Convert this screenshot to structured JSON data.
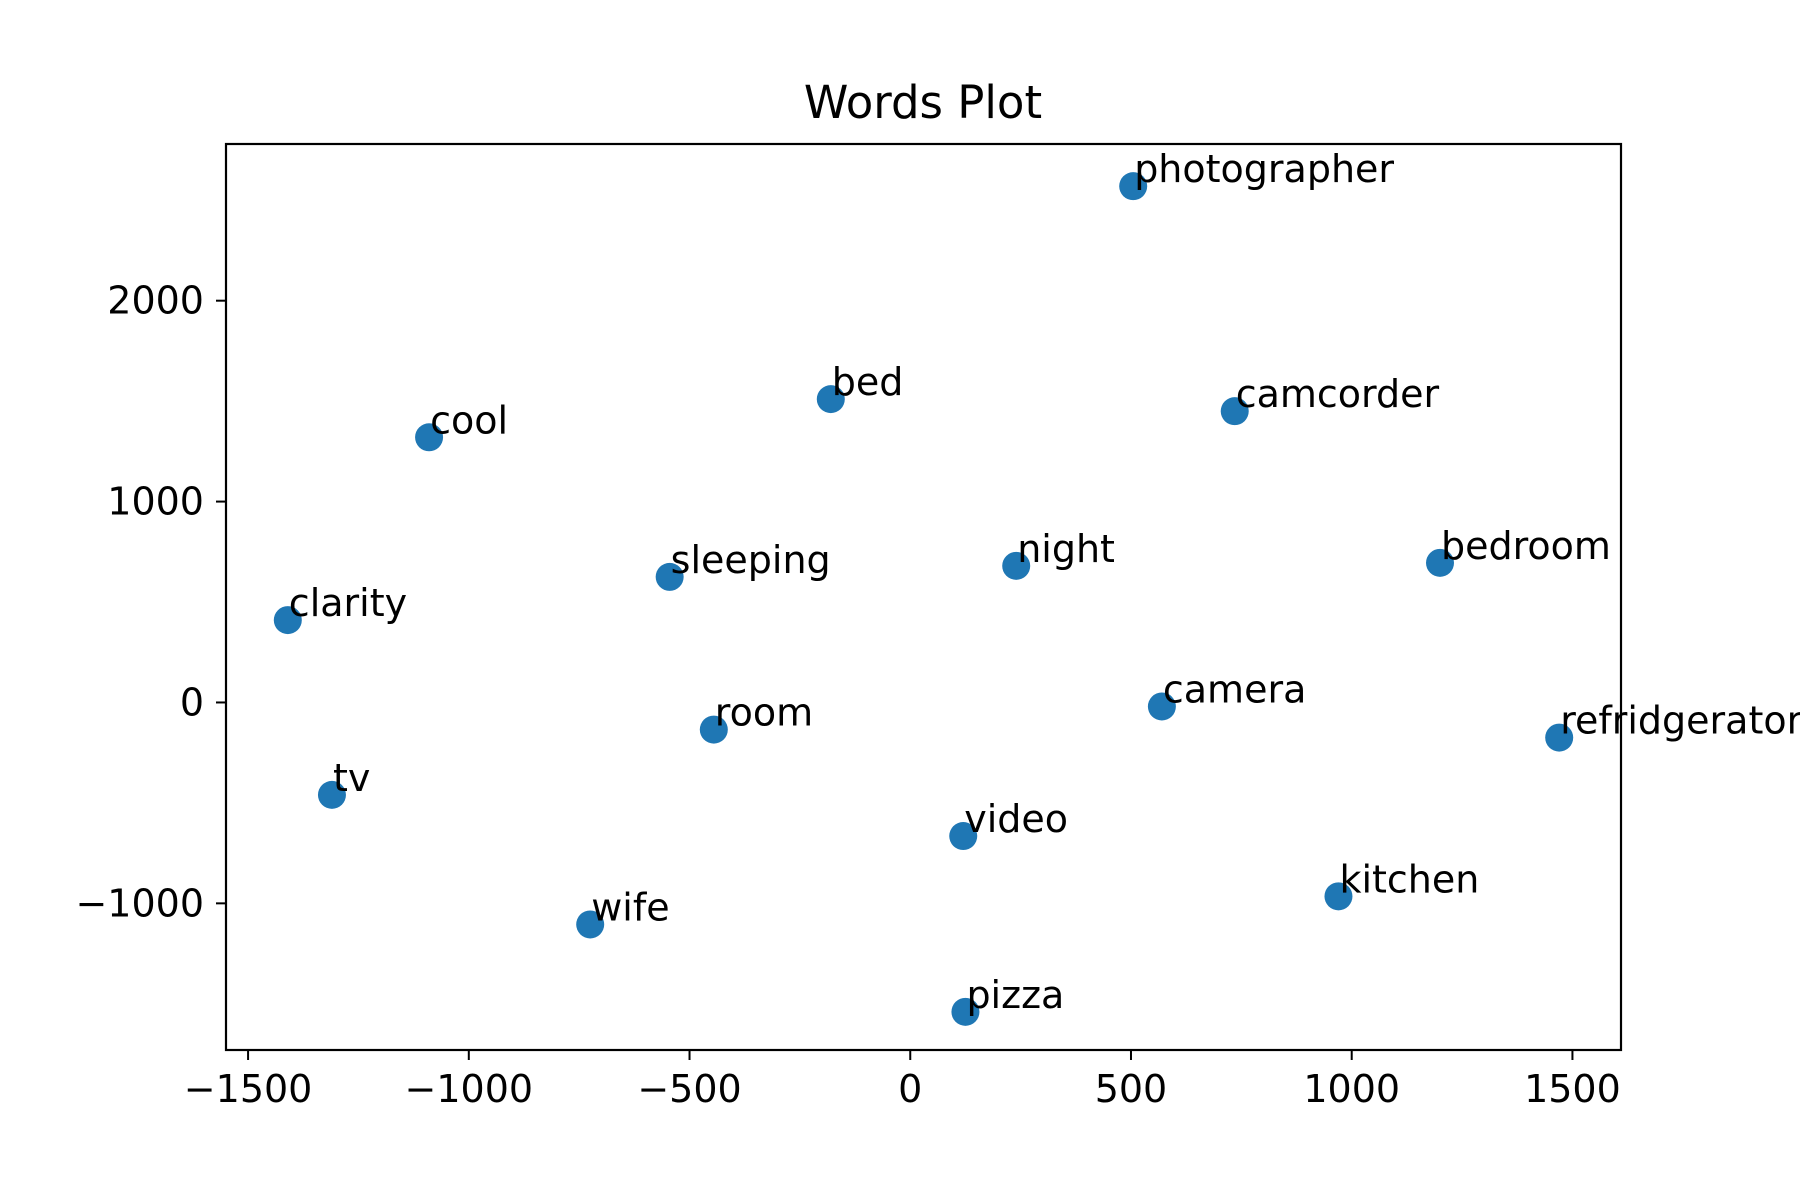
{
  "chart_data": {
    "type": "scatter",
    "title": "Words Plot",
    "xlabel": "",
    "ylabel": "",
    "xlim": [
      -1550,
      1610
    ],
    "ylim": [
      -1730,
      2780
    ],
    "xticks": [
      -1500,
      -1000,
      -500,
      0,
      500,
      1000,
      1500
    ],
    "xtick_labels": [
      "−1500",
      "−1000",
      "−500",
      "0",
      "500",
      "1000",
      "1500"
    ],
    "yticks": [
      -1000,
      0,
      1000,
      2000
    ],
    "ytick_labels": [
      "−1000",
      "0",
      "1000",
      "2000"
    ],
    "grid": false,
    "color": "#1f77b4",
    "points": [
      {
        "label": "photographer",
        "x": 505,
        "y": 2570
      },
      {
        "label": "bed",
        "x": -180,
        "y": 1510
      },
      {
        "label": "camcorder",
        "x": 735,
        "y": 1450
      },
      {
        "label": "cool",
        "x": -1090,
        "y": 1320
      },
      {
        "label": "sleeping",
        "x": -545,
        "y": 625
      },
      {
        "label": "night",
        "x": 240,
        "y": 680
      },
      {
        "label": "bedroom",
        "x": 1200,
        "y": 695
      },
      {
        "label": "clarity",
        "x": -1410,
        "y": 410
      },
      {
        "label": "camera",
        "x": 570,
        "y": -20
      },
      {
        "label": "room",
        "x": -445,
        "y": -135
      },
      {
        "label": "refridgerator",
        "x": 1470,
        "y": -175
      },
      {
        "label": "tv",
        "x": -1310,
        "y": -460
      },
      {
        "label": "video",
        "x": 120,
        "y": -665
      },
      {
        "label": "kitchen",
        "x": 970,
        "y": -965
      },
      {
        "label": "wife",
        "x": -725,
        "y": -1105
      },
      {
        "label": "pizza",
        "x": 125,
        "y": -1540
      }
    ]
  }
}
